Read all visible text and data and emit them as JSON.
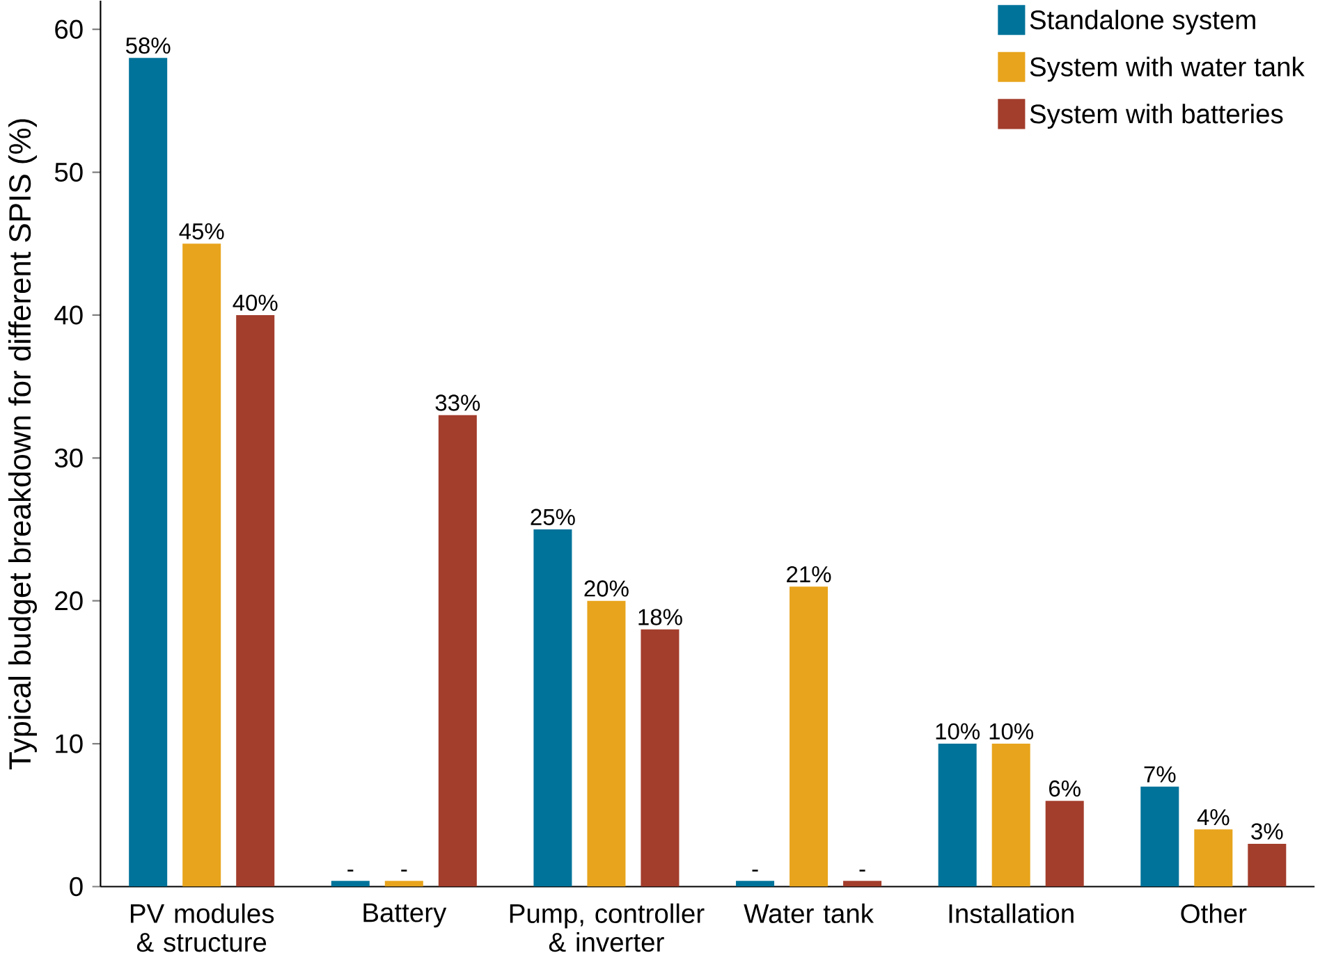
{
  "chart_data": {
    "type": "bar",
    "ylabel": "Typical budget breakdown for different SPIS (%)",
    "categories": [
      "PV modules & structure",
      "Battery",
      "Pump, controller & inverter",
      "Water tank",
      "Installation",
      "Other"
    ],
    "series": [
      {
        "name": "Standalone system",
        "color": "#00739a",
        "values": [
          58,
          0.4,
          25,
          0.4,
          10,
          7
        ],
        "value_labels": [
          "58%",
          "-",
          "25%",
          "-",
          "10%",
          "7%"
        ]
      },
      {
        "name": "System with water tank",
        "color": "#e8a41c",
        "values": [
          45,
          0.4,
          20,
          21,
          10,
          4
        ],
        "value_labels": [
          "45%",
          "-",
          "20%",
          "21%",
          "10%",
          "4%"
        ]
      },
      {
        "name": "System with batteries",
        "color": "#a33d2c",
        "values": [
          40,
          33,
          18,
          0.4,
          6,
          3
        ],
        "value_labels": [
          "40%",
          "33%",
          "18%",
          "-",
          "6%",
          "3%"
        ]
      }
    ],
    "ylim": [
      0,
      62
    ],
    "yticks": [
      0,
      10,
      20,
      30,
      40,
      50,
      60
    ],
    "legend": "top right"
  }
}
